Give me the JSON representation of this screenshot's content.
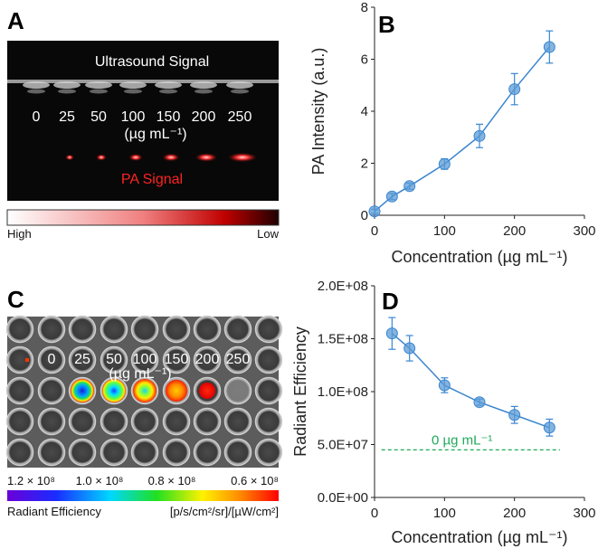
{
  "panels": {
    "A": {
      "letter": "A",
      "ultrasound_label": "Ultrasound Signal",
      "pa_label": "PA Signal",
      "concentrations": [
        "0",
        "25",
        "50",
        "100",
        "150",
        "200",
        "250"
      ],
      "unit": "(µg mL⁻¹)",
      "colorbar_high": "High",
      "colorbar_low": "Low"
    },
    "C": {
      "letter": "C",
      "concentrations": [
        "0",
        "25",
        "50",
        "100",
        "150",
        "200",
        "250"
      ],
      "unit": "(µg mL⁻¹)",
      "scale_ticks": [
        "1.2 × 10⁸",
        "1.0 × 10⁸",
        "0.8 × 10⁸",
        "0.6 × 10⁸"
      ],
      "colorbar_left_label": "Radiant Efficiency",
      "colorbar_right_label": "[p/s/cm²/sr]/[µW/cm²]"
    }
  },
  "colors": {
    "series": "#5b9bd5",
    "series_line": "#3a86d0",
    "reference": "#1faa5a",
    "pa_red": "#ff2a2a"
  },
  "chart_data": [
    {
      "letter": "B",
      "type": "line",
      "x": [
        0,
        25,
        50,
        100,
        150,
        200,
        250
      ],
      "values": [
        0.15,
        0.72,
        1.12,
        1.97,
        3.05,
        4.85,
        6.47
      ],
      "errors": [
        0.08,
        0.12,
        0.12,
        0.2,
        0.45,
        0.6,
        0.62
      ],
      "xlabel": "Concentration (µg mL⁻¹)",
      "ylabel": "PA Intensity  (a.u.)",
      "xlim": [
        0,
        300
      ],
      "ylim": [
        0,
        8
      ],
      "xticks": [
        "0",
        "100",
        "200",
        "300"
      ],
      "yticks": [
        "0",
        "2",
        "4",
        "6",
        "8"
      ],
      "grid": false
    },
    {
      "letter": "D",
      "type": "line",
      "x": [
        25,
        50,
        100,
        150,
        200,
        250
      ],
      "values": [
        155000000,
        141000000,
        106000000,
        90000000,
        78000000,
        66000000
      ],
      "errors": [
        15000000,
        12000000,
        7000000,
        3000000,
        8000000,
        8000000
      ],
      "reference_value": 45000000,
      "reference_label": "0 µg mL⁻¹",
      "xlabel": "Concentration (µg mL⁻¹)",
      "ylabel": "Radiant  Efficiency",
      "xlim": [
        0,
        300
      ],
      "ylim": [
        0,
        200000000
      ],
      "xticks": [
        "0",
        "100",
        "200",
        "300"
      ],
      "yticks": [
        "0.0E+00",
        "5.0E+07",
        "1.0E+08",
        "1.5E+08",
        "2.0E+08"
      ],
      "grid": false
    }
  ]
}
